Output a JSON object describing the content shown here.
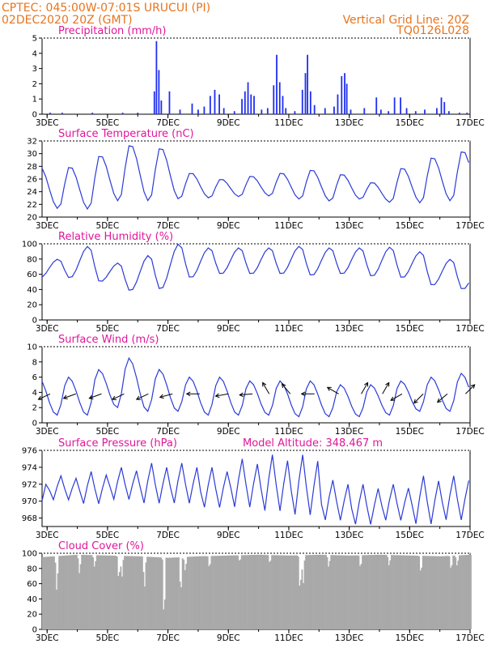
{
  "header": {
    "left_line1": "CPTEC:   045:00W-07:01S   URUCUI (PI)",
    "left_line2": "02DEC2020 20Z (GMT)",
    "right_line1": "Vertical Grid Line: 20Z",
    "right_line2": "TQ0126L028"
  },
  "colors": {
    "header_text": "#e8741c",
    "panel_title": "#e0169a",
    "series_line": "#2b3bd6",
    "precip_bar": "#1f2ff0",
    "cloud_fill": "#a9a9a9",
    "wind_arrow": "#000000"
  },
  "x_axis": {
    "tick_labels": [
      "3DEC",
      "5DEC",
      "7DEC",
      "9DEC",
      "11DEC",
      "13DEC",
      "15DEC",
      "17DEC"
    ],
    "tick_days": [
      3,
      5,
      7,
      9,
      11,
      13,
      15,
      17
    ],
    "domain_days": [
      2.8333,
      17.0
    ],
    "step_hours": 3
  },
  "panels": {
    "precip": {
      "title": "Precipitation (mm/h)",
      "yticks": [
        "0",
        "1",
        "2",
        "3",
        "4",
        "5"
      ]
    },
    "temperature": {
      "title": "Surface Temperature (nC)",
      "yticks": [
        "20",
        "22",
        "24",
        "26",
        "28",
        "30",
        "32"
      ]
    },
    "humidity": {
      "title": "Relative Humidity (%)",
      "yticks": [
        "0",
        "20",
        "40",
        "60",
        "80",
        "100"
      ]
    },
    "wind": {
      "title": "Surface Wind (m/s)",
      "yticks": [
        "0",
        "2",
        "4",
        "6",
        "8",
        "10"
      ]
    },
    "pressure": {
      "title": "Surface Pressure (hPa)",
      "altitude": "Model Altitude: 348.467 m",
      "yticks": [
        "968",
        "970",
        "972",
        "974",
        "976"
      ]
    },
    "cloud": {
      "title": "Cloud Cover (%)",
      "yticks": [
        "0",
        "20",
        "40",
        "60",
        "80",
        "100"
      ]
    }
  },
  "chart_data": [
    {
      "type": "bar",
      "title": "Precipitation (mm/h)",
      "ylim": [
        0,
        5
      ],
      "grid": false,
      "events": [
        {
          "day": 3.1,
          "value": 0.1
        },
        {
          "day": 3.5,
          "value": 0.1
        },
        {
          "day": 4.5,
          "value": 0.1
        },
        {
          "day": 5.5,
          "value": 0.1
        },
        {
          "day": 6.0,
          "value": 0.1
        },
        {
          "day": 6.55,
          "value": 1.5
        },
        {
          "day": 6.62,
          "value": 4.8
        },
        {
          "day": 6.7,
          "value": 2.9
        },
        {
          "day": 6.78,
          "value": 0.9
        },
        {
          "day": 7.05,
          "value": 1.5
        },
        {
          "day": 7.4,
          "value": 0.3
        },
        {
          "day": 7.8,
          "value": 0.7
        },
        {
          "day": 8.0,
          "value": 0.3
        },
        {
          "day": 8.2,
          "value": 0.5
        },
        {
          "day": 8.4,
          "value": 1.2
        },
        {
          "day": 8.55,
          "value": 1.6
        },
        {
          "day": 8.7,
          "value": 1.3
        },
        {
          "day": 8.85,
          "value": 0.4
        },
        {
          "day": 9.2,
          "value": 0.2
        },
        {
          "day": 9.45,
          "value": 1.0
        },
        {
          "day": 9.55,
          "value": 1.5
        },
        {
          "day": 9.65,
          "value": 2.1
        },
        {
          "day": 9.75,
          "value": 1.3
        },
        {
          "day": 9.85,
          "value": 1.2
        },
        {
          "day": 10.1,
          "value": 0.3
        },
        {
          "day": 10.3,
          "value": 0.4
        },
        {
          "day": 10.5,
          "value": 1.9
        },
        {
          "day": 10.6,
          "value": 3.9
        },
        {
          "day": 10.7,
          "value": 2.1
        },
        {
          "day": 10.8,
          "value": 1.2
        },
        {
          "day": 10.9,
          "value": 0.4
        },
        {
          "day": 11.2,
          "value": 0.2
        },
        {
          "day": 11.45,
          "value": 1.6
        },
        {
          "day": 11.55,
          "value": 2.7
        },
        {
          "day": 11.62,
          "value": 3.9
        },
        {
          "day": 11.72,
          "value": 1.5
        },
        {
          "day": 11.85,
          "value": 0.6
        },
        {
          "day": 12.2,
          "value": 0.4
        },
        {
          "day": 12.5,
          "value": 0.5
        },
        {
          "day": 12.62,
          "value": 1.3
        },
        {
          "day": 12.75,
          "value": 2.5
        },
        {
          "day": 12.85,
          "value": 2.7
        },
        {
          "day": 12.92,
          "value": 2.0
        },
        {
          "day": 13.05,
          "value": 0.3
        },
        {
          "day": 13.5,
          "value": 0.4
        },
        {
          "day": 13.9,
          "value": 1.1
        },
        {
          "day": 14.05,
          "value": 0.3
        },
        {
          "day": 14.3,
          "value": 0.2
        },
        {
          "day": 14.5,
          "value": 1.1
        },
        {
          "day": 14.7,
          "value": 1.1
        },
        {
          "day": 14.9,
          "value": 0.4
        },
        {
          "day": 15.2,
          "value": 0.2
        },
        {
          "day": 15.5,
          "value": 0.3
        },
        {
          "day": 15.9,
          "value": 0.4
        },
        {
          "day": 16.05,
          "value": 1.1
        },
        {
          "day": 16.15,
          "value": 0.8
        },
        {
          "day": 16.3,
          "value": 0.2
        },
        {
          "day": 16.65,
          "value": 0.1
        },
        {
          "day": 16.9,
          "value": 0.1
        }
      ]
    },
    {
      "type": "line",
      "title": "Surface Temperature (nC)",
      "ylim": [
        20,
        32
      ],
      "grid": false,
      "daily": [
        {
          "day": 3,
          "max": 28.0,
          "min": 21.3
        },
        {
          "day": 4,
          "max": 29.8,
          "min": 21.2
        },
        {
          "day": 5,
          "max": 31.5,
          "min": 22.5
        },
        {
          "day": 6,
          "max": 31.0,
          "min": 22.5
        },
        {
          "day": 7,
          "max": 27.0,
          "min": 22.8
        },
        {
          "day": 8,
          "max": 26.0,
          "min": 23.0
        },
        {
          "day": 9,
          "max": 26.5,
          "min": 23.2
        },
        {
          "day": 10,
          "max": 27.0,
          "min": 23.3
        },
        {
          "day": 11,
          "max": 27.5,
          "min": 22.8
        },
        {
          "day": 12,
          "max": 26.8,
          "min": 22.5
        },
        {
          "day": 13,
          "max": 25.5,
          "min": 22.8
        },
        {
          "day": 14,
          "max": 27.8,
          "min": 22.3
        },
        {
          "day": 15,
          "max": 29.5,
          "min": 22.2
        },
        {
          "day": 16,
          "max": 30.5,
          "min": 22.5
        },
        {
          "day": 17,
          "max": 30.8,
          "min": 22.8
        }
      ]
    },
    {
      "type": "line",
      "title": "Relative Humidity (%)",
      "ylim": [
        0,
        100
      ],
      "grid": false,
      "daily": [
        {
          "day": 3,
          "max": 80,
          "min": 55
        },
        {
          "day": 4,
          "max": 97,
          "min": 50
        },
        {
          "day": 5,
          "max": 75,
          "min": 38
        },
        {
          "day": 6,
          "max": 85,
          "min": 40
        },
        {
          "day": 7,
          "max": 100,
          "min": 55
        },
        {
          "day": 8,
          "max": 95,
          "min": 60
        },
        {
          "day": 9,
          "max": 95,
          "min": 60
        },
        {
          "day": 10,
          "max": 95,
          "min": 60
        },
        {
          "day": 11,
          "max": 97,
          "min": 58
        },
        {
          "day": 12,
          "max": 95,
          "min": 60
        },
        {
          "day": 13,
          "max": 95,
          "min": 57
        },
        {
          "day": 14,
          "max": 96,
          "min": 55
        },
        {
          "day": 15,
          "max": 90,
          "min": 45
        },
        {
          "day": 16,
          "max": 80,
          "min": 40
        },
        {
          "day": 17,
          "max": 75,
          "min": 42
        }
      ]
    },
    {
      "type": "line",
      "title": "Surface Wind (m/s)",
      "ylim": [
        0,
        10
      ],
      "grid": false,
      "daily": [
        {
          "day": 3,
          "max": 6.0,
          "min": 1.0
        },
        {
          "day": 4,
          "max": 7.0,
          "min": 1.0
        },
        {
          "day": 5,
          "max": 8.5,
          "min": 2.0
        },
        {
          "day": 6,
          "max": 7.0,
          "min": 1.5
        },
        {
          "day": 7,
          "max": 6.0,
          "min": 1.5
        },
        {
          "day": 8,
          "max": 6.0,
          "min": 1.0
        },
        {
          "day": 9,
          "max": 5.5,
          "min": 1.0
        },
        {
          "day": 10,
          "max": 5.5,
          "min": 1.0
        },
        {
          "day": 11,
          "max": 5.5,
          "min": 0.8
        },
        {
          "day": 12,
          "max": 5.0,
          "min": 0.8
        },
        {
          "day": 13,
          "max": 5.0,
          "min": 0.8
        },
        {
          "day": 14,
          "max": 5.5,
          "min": 1.0
        },
        {
          "day": 15,
          "max": 6.0,
          "min": 1.5
        },
        {
          "day": 16,
          "max": 6.5,
          "min": 1.5
        },
        {
          "day": 17,
          "max": 5.5,
          "min": 1.5
        }
      ],
      "arrows": [
        {
          "day": 3.1,
          "dir_deg": 205
        },
        {
          "day": 3.95,
          "dir_deg": 200
        },
        {
          "day": 4.8,
          "dir_deg": 200
        },
        {
          "day": 5.55,
          "dir_deg": 205
        },
        {
          "day": 6.35,
          "dir_deg": 205
        },
        {
          "day": 7.15,
          "dir_deg": 195
        },
        {
          "day": 8.05,
          "dir_deg": 180
        },
        {
          "day": 9.0,
          "dir_deg": 190
        },
        {
          "day": 9.8,
          "dir_deg": 185
        },
        {
          "day": 10.35,
          "dir_deg": 120
        },
        {
          "day": 11.05,
          "dir_deg": 130
        },
        {
          "day": 11.85,
          "dir_deg": 180
        },
        {
          "day": 12.65,
          "dir_deg": 150
        },
        {
          "day": 13.4,
          "dir_deg": 60
        },
        {
          "day": 14.1,
          "dir_deg": 60
        },
        {
          "day": 14.75,
          "dir_deg": 210
        },
        {
          "day": 15.45,
          "dir_deg": 225
        },
        {
          "day": 16.25,
          "dir_deg": 220
        },
        {
          "day": 16.85,
          "dir_deg": 45
        }
      ]
    },
    {
      "type": "line",
      "title": "Surface Pressure (hPa)",
      "ylim": [
        967.0,
        976.0
      ],
      "grid": false,
      "daily": [
        {
          "day": 3,
          "max": 973.0,
          "min": 970.0
        },
        {
          "day": 4,
          "max": 973.5,
          "min": 969.5
        },
        {
          "day": 5,
          "max": 974.0,
          "min": 970.0
        },
        {
          "day": 6,
          "max": 974.5,
          "min": 969.5
        },
        {
          "day": 7,
          "max": 974.5,
          "min": 969.5
        },
        {
          "day": 8,
          "max": 974.0,
          "min": 969.0
        },
        {
          "day": 9,
          "max": 975.0,
          "min": 969.0
        },
        {
          "day": 10,
          "max": 975.5,
          "min": 968.5
        },
        {
          "day": 11,
          "max": 975.5,
          "min": 968.0
        },
        {
          "day": 12,
          "max": 972.5,
          "min": 967.5
        },
        {
          "day": 13,
          "max": 972.0,
          "min": 967.0
        },
        {
          "day": 14,
          "max": 972.0,
          "min": 967.5
        },
        {
          "day": 15,
          "max": 973.0,
          "min": 967.0
        },
        {
          "day": 16,
          "max": 973.0,
          "min": 967.5
        },
        {
          "day": 17,
          "max": 972.5,
          "min": 967.5
        }
      ]
    },
    {
      "type": "area",
      "title": "Cloud Cover (%)",
      "ylim": [
        0,
        100
      ],
      "grid": false,
      "profile": [
        {
          "day": 2.83,
          "value": 95
        },
        {
          "day": 4.0,
          "value": 98
        },
        {
          "day": 5.0,
          "value": 97
        },
        {
          "day": 6.0,
          "value": 96
        },
        {
          "day": 7.0,
          "value": 94
        },
        {
          "day": 8.0,
          "value": 96
        },
        {
          "day": 9.0,
          "value": 97
        },
        {
          "day": 10.0,
          "value": 98
        },
        {
          "day": 11.0,
          "value": 97
        },
        {
          "day": 12.0,
          "value": 98
        },
        {
          "day": 13.0,
          "value": 97
        },
        {
          "day": 14.0,
          "value": 98
        },
        {
          "day": 15.0,
          "value": 97
        },
        {
          "day": 16.0,
          "value": 96
        },
        {
          "day": 17.0,
          "value": 98
        }
      ],
      "dips": [
        {
          "day": 3.3,
          "value": 45
        },
        {
          "day": 4.05,
          "value": 70
        },
        {
          "day": 4.55,
          "value": 80
        },
        {
          "day": 5.35,
          "value": 60
        },
        {
          "day": 5.45,
          "value": 65
        },
        {
          "day": 6.2,
          "value": 50
        },
        {
          "day": 6.85,
          "value": 0
        },
        {
          "day": 7.4,
          "value": 40
        },
        {
          "day": 7.55,
          "value": 75
        },
        {
          "day": 8.35,
          "value": 78
        },
        {
          "day": 9.35,
          "value": 88
        },
        {
          "day": 10.35,
          "value": 85
        },
        {
          "day": 11.35,
          "value": 42
        },
        {
          "day": 11.45,
          "value": 55
        },
        {
          "day": 12.3,
          "value": 80
        },
        {
          "day": 13.35,
          "value": 78
        },
        {
          "day": 14.3,
          "value": 82
        },
        {
          "day": 15.35,
          "value": 70
        },
        {
          "day": 16.35,
          "value": 75
        },
        {
          "day": 16.55,
          "value": 82
        }
      ]
    }
  ]
}
